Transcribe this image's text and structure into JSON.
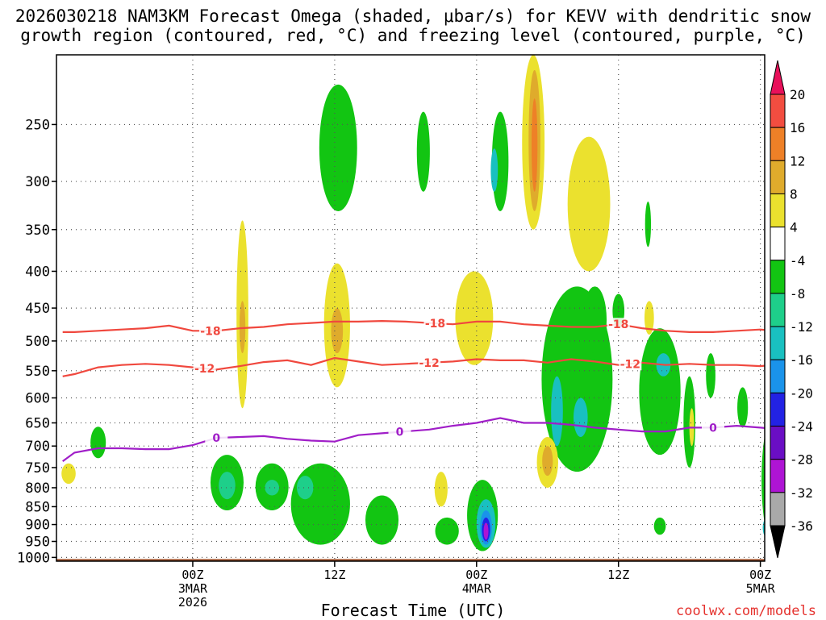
{
  "title_line1": "2026030218 NAM3KM Forecast Omega (shaded, μbar/s) for KEVV with dendritic snow",
  "title_line2": "growth region (contoured, red, °C) and freezing level (contoured, purple, °C)",
  "xlabel": "Forecast Time (UTC)",
  "credit": "coolwx.com/models",
  "chart_data": {
    "type": "heatmap",
    "title": "2026030218 NAM3KM Forecast Omega (shaded, μbar/s) for KEVV with dendritic snow growth region (contoured, red, °C) and freezing level (contoured, purple, °C)",
    "xlabel": "Forecast Time (UTC)",
    "ylabel": "Pressure (hPa)",
    "x_units": "hours since 2026-03-02 18Z",
    "xlim": [
      -5,
      50
    ],
    "ylim": [
      1000,
      200
    ],
    "y_ticks": [
      250,
      300,
      350,
      400,
      450,
      500,
      550,
      600,
      650,
      700,
      750,
      800,
      850,
      900,
      950,
      1000
    ],
    "x_ticks": [
      {
        "hour": 6,
        "lines": [
          "00Z",
          "3MAR",
          "2026"
        ]
      },
      {
        "hour": 18,
        "lines": [
          "12Z"
        ]
      },
      {
        "hour": 30,
        "lines": [
          "00Z",
          "4MAR"
        ]
      },
      {
        "hour": 42,
        "lines": [
          "12Z"
        ]
      },
      {
        "hour": 54,
        "lines": [
          "00Z",
          "5MAR"
        ]
      }
    ],
    "colorbar": {
      "labels": [
        "20",
        "16",
        "12",
        "8",
        "4",
        "-4",
        "-8",
        "-12",
        "-16",
        "-20",
        "-24",
        "-28",
        "-32",
        "-36"
      ],
      "colors": [
        "#e8105a",
        "#f24d40",
        "#ee8027",
        "#dfab2c",
        "#ebe12e",
        "#ffffff",
        "#12c512",
        "#1ecf8a",
        "#19c0c0",
        "#1a93ea",
        "#2222e4",
        "#6a0ec4",
        "#ae14d4",
        "#a9a9a9",
        "#000000"
      ]
    },
    "contours": [
      {
        "name": "-18",
        "color": "#f0483e",
        "label_hours": [
          7.5,
          26.5,
          42
        ]
      },
      {
        "name": "-12",
        "color": "#f0483e",
        "label_hours": [
          7,
          26,
          43
        ]
      },
      {
        "name": "0",
        "color": "#a01ec8",
        "label_hours": [
          8,
          23.5,
          50
        ]
      }
    ],
    "series": [
      {
        "name": "-18",
        "x": [
          -5,
          -4,
          -2,
          0,
          2,
          4,
          6,
          8,
          10,
          12,
          14,
          16,
          18,
          20,
          22,
          24,
          26,
          28,
          30,
          32,
          34,
          36,
          38,
          40,
          42,
          44,
          46,
          48,
          50,
          52,
          54,
          56,
          58,
          60,
          62,
          64
        ],
        "y": [
          486,
          486,
          484,
          482,
          480,
          476,
          484,
          484,
          480,
          478,
          474,
          472,
          470,
          470,
          469,
          470,
          472,
          474,
          470,
          470,
          474,
          476,
          478,
          478,
          474,
          480,
          484,
          486,
          486,
          484,
          482,
          486,
          484,
          482,
          482,
          482
        ]
      },
      {
        "name": "-12",
        "x": [
          -5,
          -4,
          -2,
          0,
          2,
          4,
          6,
          8,
          10,
          12,
          14,
          16,
          18,
          20,
          22,
          24,
          26,
          28,
          30,
          32,
          34,
          36,
          38,
          40,
          42,
          44,
          46,
          48,
          50,
          52,
          54,
          56,
          58,
          60,
          62,
          64
        ],
        "y": [
          560,
          556,
          544,
          540,
          538,
          540,
          544,
          548,
          542,
          535,
          532,
          540,
          528,
          534,
          540,
          538,
          536,
          534,
          530,
          532,
          532,
          536,
          530,
          534,
          540,
          536,
          540,
          538,
          540,
          540,
          542,
          538,
          544,
          548,
          542,
          546
        ]
      },
      {
        "name": "0",
        "x": [
          -5,
          -4,
          -2,
          0,
          2,
          4,
          6,
          8,
          10,
          12,
          14,
          16,
          18,
          20,
          22,
          24,
          26,
          28,
          30,
          32,
          34,
          36,
          38,
          40,
          42,
          44,
          46,
          48,
          50,
          52,
          54,
          56,
          58,
          60,
          62,
          64
        ],
        "y": [
          735,
          715,
          705,
          705,
          707,
          707,
          698,
          682,
          680,
          678,
          684,
          688,
          690,
          676,
          672,
          668,
          664,
          656,
          650,
          640,
          650,
          650,
          654,
          660,
          664,
          668,
          668,
          660,
          660,
          656,
          660,
          664,
          660,
          662,
          664,
          664
        ]
      }
    ],
    "shaded_areas": [
      {
        "value": -6,
        "x": -2,
        "p": [
          658,
          728
        ],
        "w": 1.3
      },
      {
        "value": 6,
        "x": -4.5,
        "p": [
          740,
          790
        ],
        "w": 1.2
      },
      {
        "value": 6,
        "x": 10.2,
        "p": [
          340,
          620
        ],
        "w": 1.0
      },
      {
        "value": 10,
        "x": 10.2,
        "p": [
          440,
          520
        ],
        "w": 0.5
      },
      {
        "value": 6,
        "x": 18.2,
        "p": [
          390,
          580
        ],
        "w": 2.2
      },
      {
        "value": 10,
        "x": 18.2,
        "p": [
          450,
          520
        ],
        "w": 1.0
      },
      {
        "value": -6,
        "x": 8.9,
        "p": [
          720,
          860
        ],
        "w": 2.8
      },
      {
        "value": -10,
        "x": 8.9,
        "p": [
          760,
          830
        ],
        "w": 1.4
      },
      {
        "value": -6,
        "x": 12.7,
        "p": [
          740,
          860
        ],
        "w": 2.8
      },
      {
        "value": -10,
        "x": 12.7,
        "p": [
          780,
          820
        ],
        "w": 1.2
      },
      {
        "value": -6,
        "x": 16.8,
        "p": [
          740,
          960
        ],
        "w": 5.0
      },
      {
        "value": -10,
        "x": 15.5,
        "p": [
          770,
          830
        ],
        "w": 1.4
      },
      {
        "value": -6,
        "x": 18.3,
        "p": [
          220,
          330
        ],
        "w": 3.2
      },
      {
        "value": -6,
        "x": 25.5,
        "p": [
          240,
          310
        ],
        "w": 1.1
      },
      {
        "value": -6,
        "x": 22,
        "p": [
          820,
          960
        ],
        "w": 2.8
      },
      {
        "value": 6,
        "x": 27,
        "p": [
          760,
          850
        ],
        "w": 1.1
      },
      {
        "value": 6,
        "x": 29.8,
        "p": [
          400,
          540
        ],
        "w": 3.2
      },
      {
        "value": -6,
        "x": 32,
        "p": [
          240,
          330
        ],
        "w": 1.4
      },
      {
        "value": -12,
        "x": 31.5,
        "p": [
          270,
          310
        ],
        "w": 0.6
      },
      {
        "value": -6,
        "x": 27.5,
        "p": [
          880,
          960
        ],
        "w": 2.0
      },
      {
        "value": -6,
        "x": 30.5,
        "p": [
          780,
          980
        ],
        "w": 2.6
      },
      {
        "value": -12,
        "x": 30.8,
        "p": [
          830,
          970
        ],
        "w": 1.6
      },
      {
        "value": -16,
        "x": 30.8,
        "p": [
          860,
          960
        ],
        "w": 1.0
      },
      {
        "value": -20,
        "x": 30.8,
        "p": [
          880,
          950
        ],
        "w": 0.7
      },
      {
        "value": -28,
        "x": 30.8,
        "p": [
          895,
          945
        ],
        "w": 0.4
      },
      {
        "value": 6,
        "x": 34.8,
        "p": [
          200,
          350
        ],
        "w": 1.9
      },
      {
        "value": 10,
        "x": 34.9,
        "p": [
          210,
          330
        ],
        "w": 1.0
      },
      {
        "value": 14,
        "x": 34.9,
        "p": [
          230,
          310
        ],
        "w": 0.5
      },
      {
        "value": 6,
        "x": 39.5,
        "p": [
          260,
          400
        ],
        "w": 3.6
      },
      {
        "value": -6,
        "x": 38.5,
        "p": [
          420,
          760
        ],
        "w": 6.0
      },
      {
        "value": -12,
        "x": 36.8,
        "p": [
          560,
          700
        ],
        "w": 1.0
      },
      {
        "value": -12,
        "x": 38.8,
        "p": [
          600,
          680
        ],
        "w": 1.2
      },
      {
        "value": 6,
        "x": 36,
        "p": [
          680,
          800
        ],
        "w": 1.8
      },
      {
        "value": 10,
        "x": 36,
        "p": [
          700,
          770
        ],
        "w": 0.9
      },
      {
        "value": -6,
        "x": 40,
        "p": [
          420,
          520
        ],
        "w": 2.0
      },
      {
        "value": -6,
        "x": 42,
        "p": [
          430,
          480
        ],
        "w": 1.0
      },
      {
        "value": -6,
        "x": 44.5,
        "p": [
          320,
          370
        ],
        "w": 0.5
      },
      {
        "value": 6,
        "x": 44.6,
        "p": [
          440,
          490
        ],
        "w": 0.8
      },
      {
        "value": -6,
        "x": 45.5,
        "p": [
          480,
          720
        ],
        "w": 3.5
      },
      {
        "value": -12,
        "x": 45.8,
        "p": [
          520,
          560
        ],
        "w": 1.2
      },
      {
        "value": -6,
        "x": 48,
        "p": [
          560,
          750
        ],
        "w": 1.0
      },
      {
        "value": 6,
        "x": 48.2,
        "p": [
          620,
          700
        ],
        "w": 0.4
      },
      {
        "value": -6,
        "x": 45.5,
        "p": [
          880,
          930
        ],
        "w": 1.0
      },
      {
        "value": -6,
        "x": 49.8,
        "p": [
          520,
          600
        ],
        "w": 0.8
      },
      {
        "value": -6,
        "x": 52.5,
        "p": [
          580,
          660
        ],
        "w": 0.9
      },
      {
        "value": -6,
        "x": 55,
        "p": [
          640,
          950
        ],
        "w": 1.8
      },
      {
        "value": -12,
        "x": 54.6,
        "p": [
          880,
          940
        ],
        "w": 0.8
      },
      {
        "value": 6,
        "x": 55.8,
        "p": [
          450,
          560
        ],
        "w": 0.6
      },
      {
        "value": -6,
        "x": 57.2,
        "p": [
          820,
          940
        ],
        "w": 1.1
      },
      {
        "value": -6,
        "x": 61.2,
        "p": [
          240,
          340
        ],
        "w": 1.5
      },
      {
        "value": -6,
        "x": 63,
        "p": [
          240,
          490
        ],
        "w": 2.0
      },
      {
        "value": -12,
        "x": 63.3,
        "p": [
          330,
          420
        ],
        "w": 0.6
      },
      {
        "value": 6,
        "x": 62.5,
        "p": [
          580,
          900
        ],
        "w": 2.8
      },
      {
        "value": 10,
        "x": 62.5,
        "p": [
          620,
          860
        ],
        "w": 1.8
      },
      {
        "value": 14,
        "x": 62.7,
        "p": [
          640,
          700
        ],
        "w": 1.0
      },
      {
        "value": 6,
        "x": 61.4,
        "p": [
          470,
          500
        ],
        "w": 0.5
      },
      {
        "value": -6,
        "x": 63.5,
        "p": [
          620,
          960
        ],
        "w": 1.0
      }
    ]
  }
}
